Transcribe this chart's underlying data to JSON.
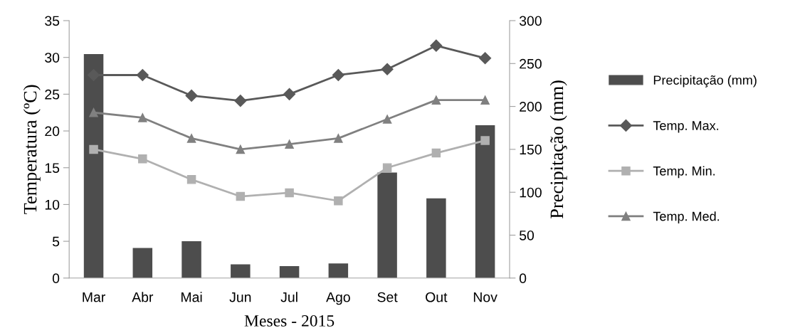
{
  "chart_data": {
    "type": "line",
    "xlabel": "Meses - 2015",
    "ylabel": "Temperatura (ºC)",
    "y2label": "Precipitação (mm)",
    "categories": [
      "Mar",
      "Abr",
      "Mai",
      "Jun",
      "Jul",
      "Ago",
      "Set",
      "Out",
      "Nov"
    ],
    "ylim": [
      0,
      35
    ],
    "yticks": [
      0,
      5,
      10,
      15,
      20,
      25,
      30,
      35
    ],
    "y2lim": [
      0,
      300
    ],
    "y2ticks": [
      0,
      50,
      100,
      150,
      200,
      250,
      300
    ],
    "grid": false,
    "legend": "right",
    "series": [
      {
        "name": "Precipitação (mm)",
        "type": "bar",
        "axis": "y2",
        "color": "#4d4d4d",
        "values": [
          261,
          35,
          43,
          16,
          14,
          17,
          123,
          93,
          178
        ]
      },
      {
        "name": "Temp. Max.",
        "marker": "diamond",
        "color": "#595959",
        "values": [
          27.6,
          27.6,
          24.8,
          24.1,
          25.0,
          27.6,
          28.4,
          31.6,
          29.9
        ]
      },
      {
        "name": "Temp. Min.",
        "marker": "square",
        "color": "#b0b0b0",
        "values": [
          17.5,
          16.2,
          13.4,
          11.1,
          11.6,
          10.5,
          15.0,
          17.0,
          18.7
        ]
      },
      {
        "name": "Temp. Med.",
        "marker": "triangle",
        "color": "#808080",
        "values": [
          22.5,
          21.8,
          19.0,
          17.5,
          18.2,
          19.0,
          21.6,
          24.2,
          24.2
        ]
      }
    ]
  }
}
